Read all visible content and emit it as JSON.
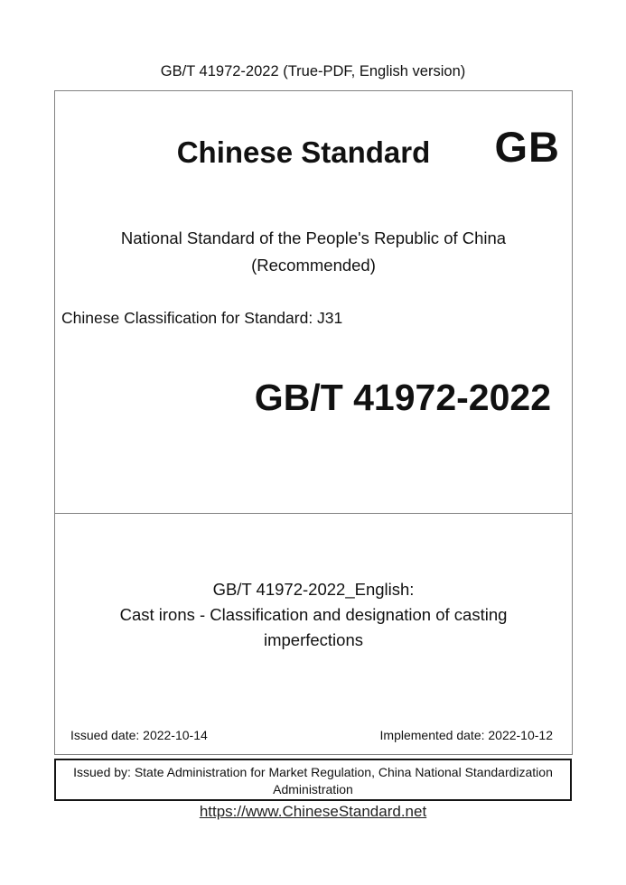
{
  "doc": {
    "header": "GB/T 41972-2022 (True-PDF, English version)",
    "brand": {
      "title": "Chinese Standard",
      "logo": "GB"
    },
    "national": {
      "line1": "National Standard of the People's Republic of China",
      "line2": "(Recommended)"
    },
    "classification": "Chinese Classification for Standard: J31",
    "standard_number": "GB/T 41972-2022",
    "english_title": {
      "line1": "GB/T 41972-2022_English:",
      "line2": "Cast irons - Classification and designation of casting",
      "line3": "imperfections"
    },
    "issued_date": "Issued date: 2022-10-14",
    "implemented_date": "Implemented date: 2022-10-12",
    "issuer": {
      "line1": "Issued by: State Administration for Market Regulation, China National Standardization",
      "line2": "Administration"
    },
    "website": "https://www.ChineseStandard.net"
  },
  "colors": {
    "text": "#111111",
    "outer_box_border": "#828282",
    "issuer_box_border": "#151515",
    "background": "#ffffff"
  }
}
